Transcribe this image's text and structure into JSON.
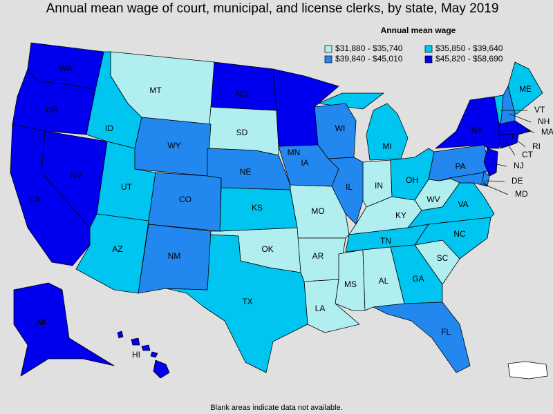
{
  "title": "Annual mean wage of court, municipal, and license clerks, by state, May 2019",
  "legend": {
    "title": "Annual mean wage",
    "items": [
      {
        "label": "$31,880 - $35,740",
        "color": "#b0eef0",
        "states": [
          "MT",
          "SD",
          "MO",
          "AR",
          "MS",
          "AL",
          "LA",
          "IN",
          "KY",
          "WV",
          "OK",
          "SC"
        ]
      },
      {
        "label": "$35,850 - $39,640",
        "color": "#00c5f0",
        "states": [
          "ID",
          "UT",
          "AZ",
          "KS",
          "TX",
          "MI",
          "OH",
          "TN",
          "NC",
          "GA",
          "VA",
          "ME",
          "VT"
        ]
      },
      {
        "label": "$39,840 - $45,010",
        "color": "#2288f0",
        "states": [
          "WY",
          "CO",
          "NM",
          "NE",
          "IA",
          "WI",
          "IL",
          "PA",
          "FL",
          "NH",
          "DE",
          "MD"
        ]
      },
      {
        "label": "$45,820 - $58,690",
        "color": "#0000ee",
        "states": [
          "WA",
          "OR",
          "CA",
          "NV",
          "AK",
          "HI",
          "ND",
          "MN",
          "NY",
          "NJ",
          "CT",
          "MA",
          "RI"
        ]
      }
    ]
  },
  "footnote": "Blank areas indicate data not available."
}
